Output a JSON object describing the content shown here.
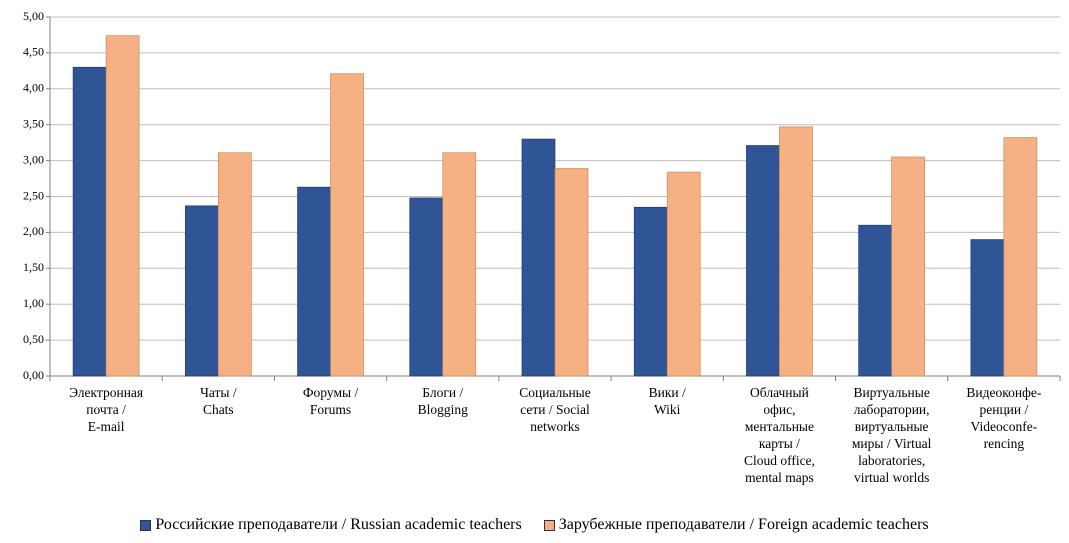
{
  "chart_data": {
    "type": "bar",
    "categories": [
      "Электронная\nпочта /\nE-mail",
      "Чаты  /\nChats",
      "Форумы /\nForums",
      "Блоги /\nBlogging",
      "Социальные\nсети / Social\nnetworks",
      "Вики /\nWiki",
      "Облачный\nофис,\nментальные\nкарты /\nCloud office,\nmental maps",
      "Виртуальные\nлаборатории,\nвиртуальные\nмиры / Virtual\nlaboratories,\nvirtual worlds",
      "Видеоконфе-\nренции /\nVideoconfe-\nrencing"
    ],
    "series": [
      {
        "name": "Российские преподаватели / Russian academic teachers",
        "color": "#2f5597",
        "values": [
          4.3,
          2.37,
          2.63,
          2.48,
          3.3,
          2.35,
          3.21,
          2.1,
          1.9
        ]
      },
      {
        "name": "Зарубежные преподаватели / Foreign academic teachers",
        "color": "#f5b183",
        "values": [
          4.74,
          3.11,
          4.21,
          3.11,
          2.89,
          2.84,
          3.47,
          3.05,
          3.32
        ]
      }
    ],
    "ylim": [
      0,
      5
    ],
    "yticks": [
      {
        "value": 0,
        "label": "0,00"
      },
      {
        "value": 0.5,
        "label": "0,50"
      },
      {
        "value": 1,
        "label": "1,00"
      },
      {
        "value": 1.5,
        "label": "1,50"
      },
      {
        "value": 2,
        "label": "2,00"
      },
      {
        "value": 2.5,
        "label": "2,50"
      },
      {
        "value": 3,
        "label": "3,00"
      },
      {
        "value": 3.5,
        "label": "3,50"
      },
      {
        "value": 4,
        "label": "4,00"
      },
      {
        "value": 4.5,
        "label": "4,50"
      },
      {
        "value": 5,
        "label": "5,00"
      }
    ],
    "grid": true,
    "legend": "bottom"
  }
}
